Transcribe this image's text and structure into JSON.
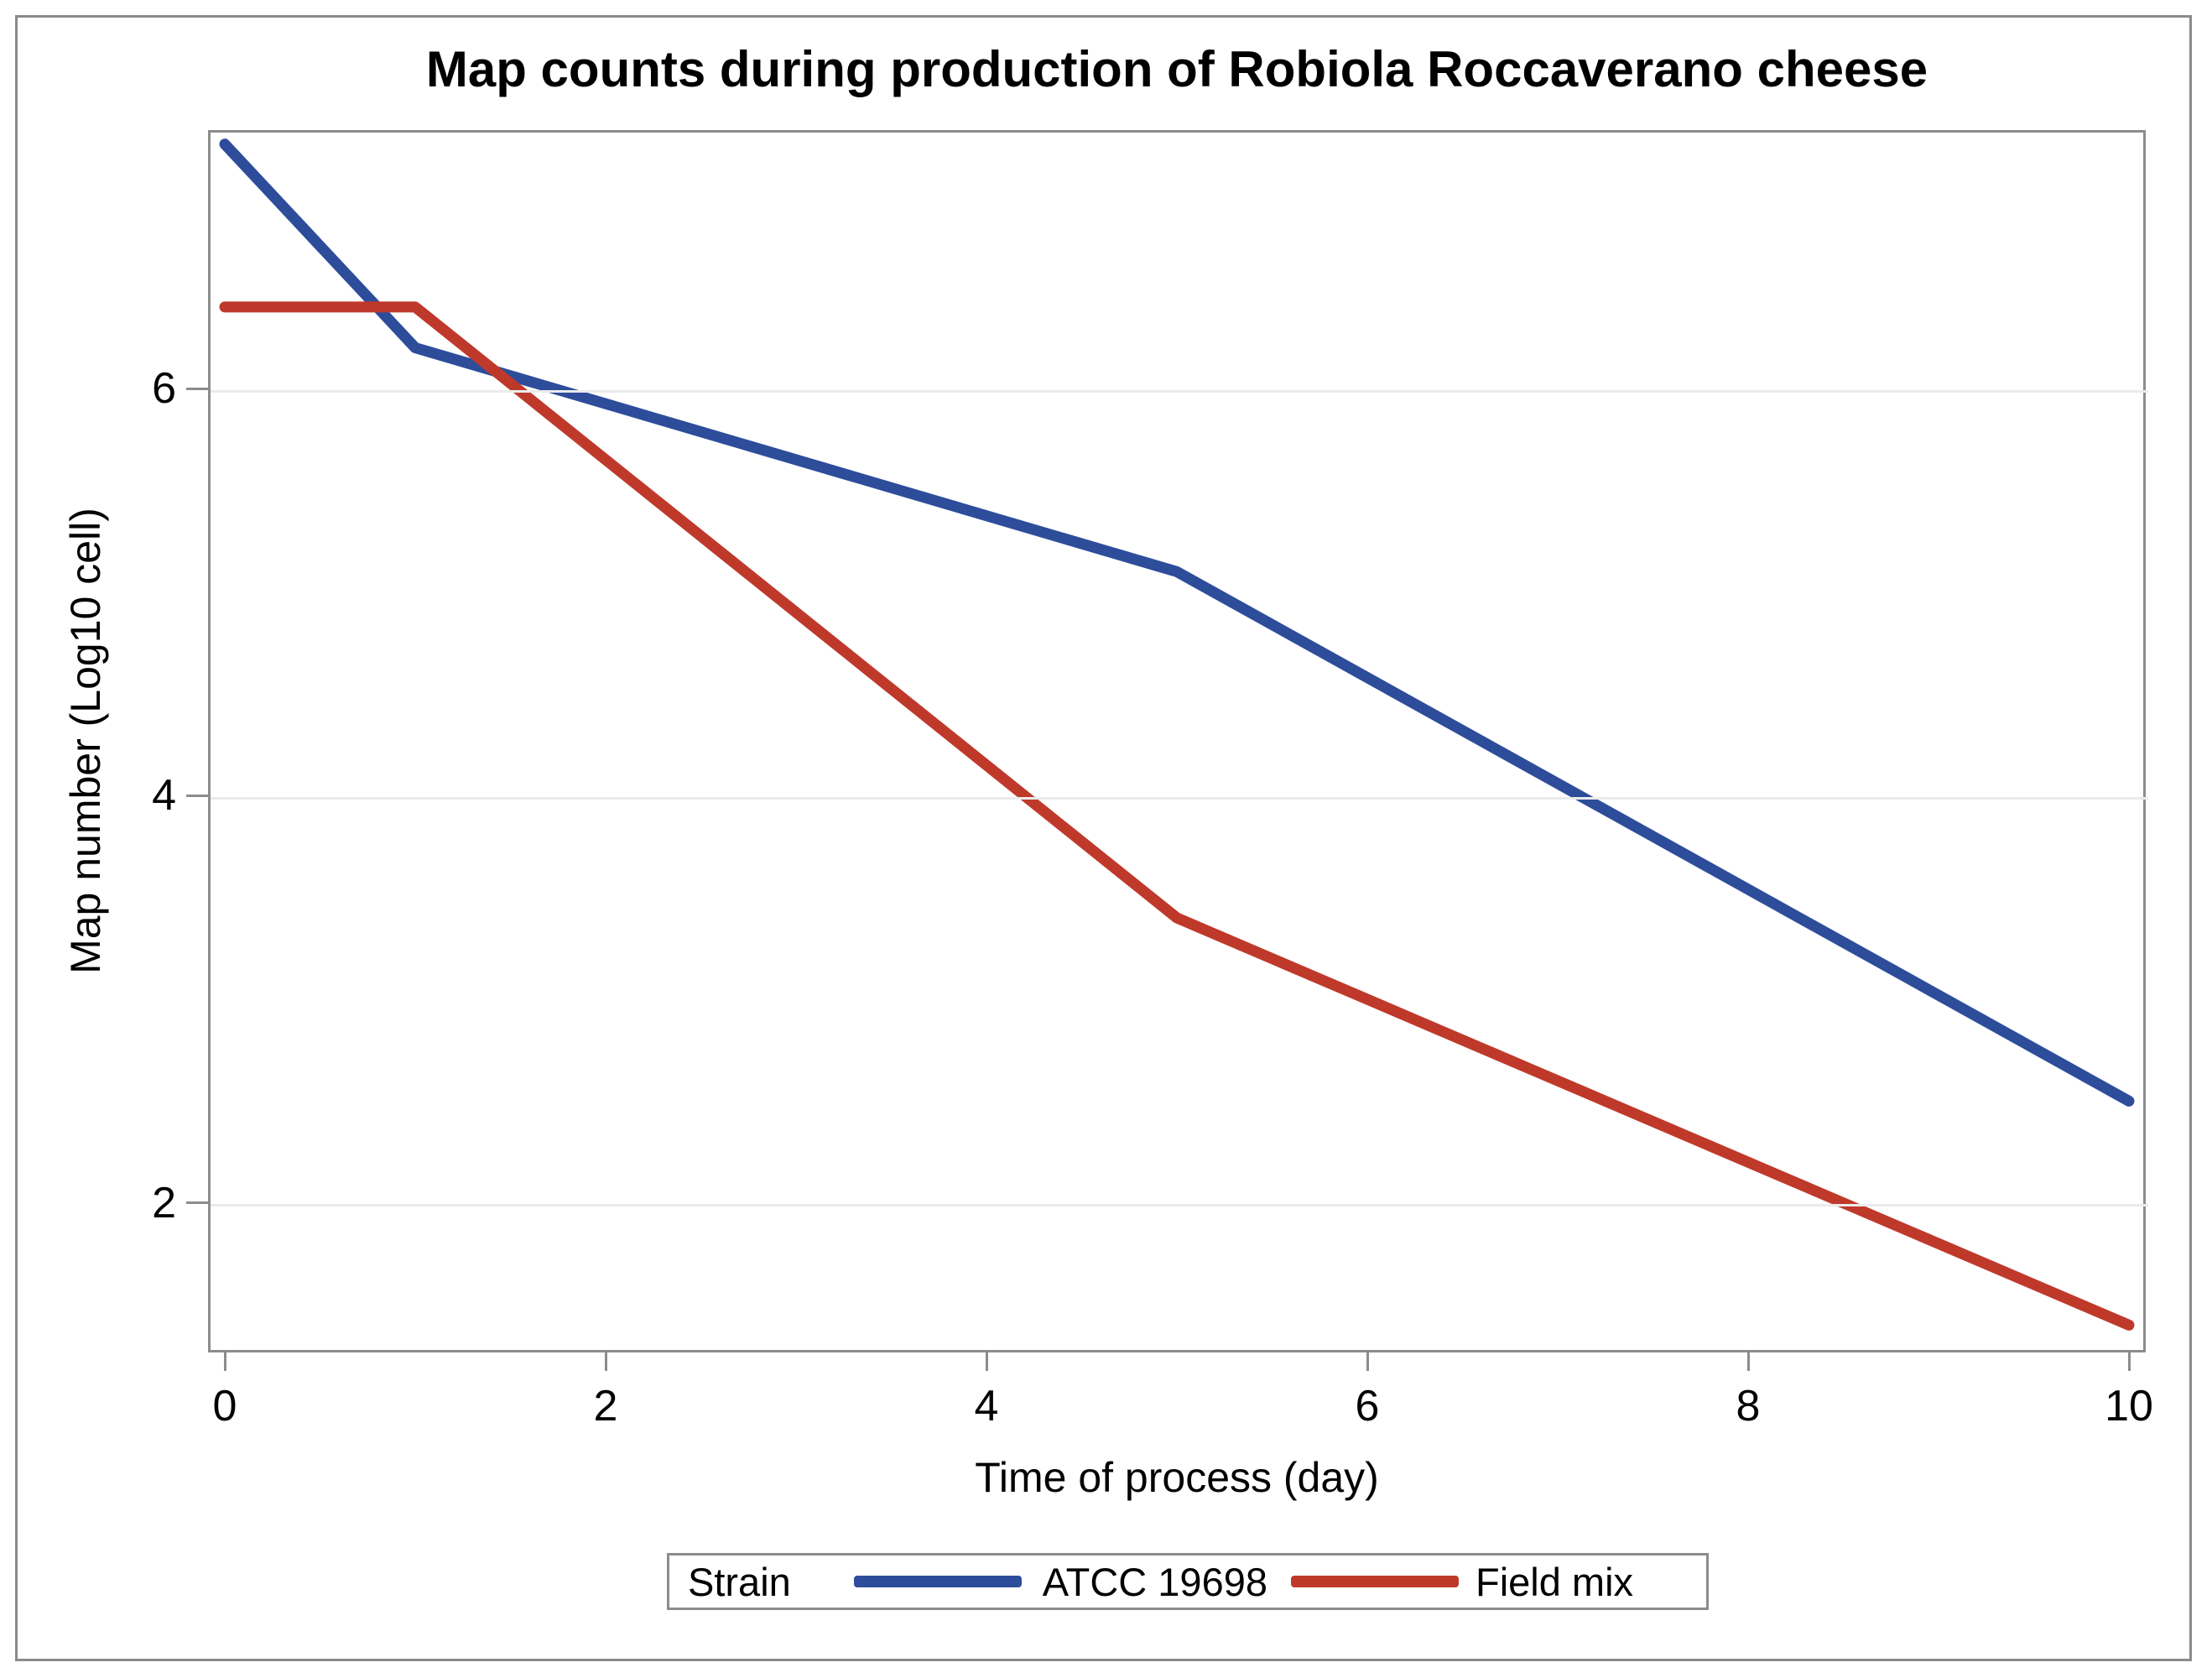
{
  "chart_data": {
    "type": "line",
    "title": "Map counts during production of Robiola Roccaverano cheese",
    "xlabel": "Time of process (day)",
    "ylabel": "Map number (Log10 cell)",
    "x": [
      0,
      1,
      5,
      10
    ],
    "series": [
      {
        "name": "ATCC 19698",
        "color": "#2d4d9b",
        "values": [
          7.2,
          6.2,
          5.1,
          2.5
        ]
      },
      {
        "name": "Field mix",
        "color": "#bf392b",
        "values": [
          6.4,
          6.4,
          3.4,
          1.4
        ]
      }
    ],
    "xticks": [
      0,
      2,
      4,
      6,
      8,
      10
    ],
    "yticks": [
      2,
      4,
      6
    ],
    "xlim": [
      0,
      10
    ],
    "ylim": [
      1.3,
      7.3
    ],
    "grid": "horizontal-only",
    "legend_position": "bottom"
  },
  "legend": {
    "title": "Strain",
    "entries": [
      {
        "label": "ATCC 19698",
        "color": "#2d4d9b"
      },
      {
        "label": "Field mix",
        "color": "#bf392b"
      }
    ]
  },
  "colors": {
    "series_blue": "#2d4d9b",
    "series_red": "#bf392b",
    "frame": "#8c8c8c",
    "gridline": "#ebebeb",
    "text": "#000000",
    "background": "#ffffff"
  }
}
